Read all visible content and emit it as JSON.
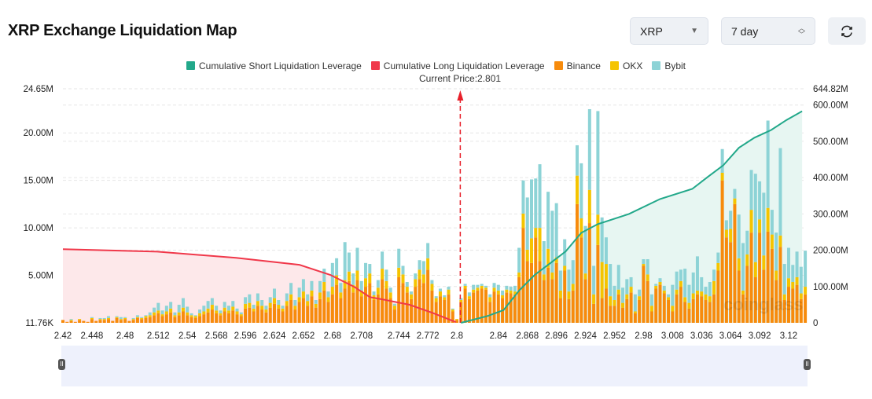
{
  "header": {
    "title": "XRP Exchange Liquidation Map",
    "symbol": "XRP",
    "range": "7 day",
    "refresh_icon": "refresh-icon"
  },
  "colors": {
    "short": "#22a88a",
    "long": "#f0384a",
    "binance": "#f78b0c",
    "okx": "#f5c400",
    "bybit": "#8dd3d6",
    "short_fill": "#e7f6f2",
    "long_fill": "#fde8ea"
  },
  "watermark": "coinglass",
  "chart_data": {
    "type": "bar",
    "legend": [
      "Cumulative Short Liquidation Leverage",
      "Cumulative Long Liquidation Leverage",
      "Binance",
      "OKX",
      "Bybit"
    ],
    "legend_placement": "top-center",
    "current_price_label": "Current Price:2.801",
    "current_price": 2.801,
    "x_tick_labels": [
      "2.42",
      "2.448",
      "2.48",
      "2.512",
      "2.54",
      "2.568",
      "2.596",
      "2.624",
      "2.652",
      "2.68",
      "2.708",
      "2.744",
      "2.772",
      "2.8",
      "2.84",
      "2.868",
      "2.896",
      "2.924",
      "2.952",
      "2.98",
      "3.008",
      "3.036",
      "3.064",
      "3.092",
      "3.12"
    ],
    "y_left": {
      "ylim": [
        0,
        24.65
      ],
      "unit": "M",
      "tick_labels": [
        "24.65M",
        "20.00M",
        "15.00M",
        "10.00M",
        "5.00M",
        "11.76K"
      ],
      "tick_values": [
        24.65,
        20,
        15,
        10,
        5,
        0
      ]
    },
    "y_right": {
      "ylim": [
        0,
        644.82
      ],
      "unit": "M",
      "tick_labels": [
        "644.82M",
        "600.00M",
        "500.00M",
        "400.00M",
        "300.00M",
        "200.00M",
        "100.00M",
        "0"
      ],
      "tick_values": [
        644.82,
        600,
        500,
        400,
        300,
        200,
        100,
        0
      ]
    },
    "grid": true,
    "bars": {
      "x_start": 2.42,
      "x_step": 0.004,
      "binance": [
        0.3,
        0.1,
        0.2,
        0.1,
        0.3,
        0.2,
        0.1,
        0.4,
        0.2,
        0.3,
        0.3,
        0.4,
        0.2,
        0.5,
        0.3,
        0.4,
        0.2,
        0.3,
        0.5,
        0.4,
        0.5,
        0.6,
        0.8,
        1.0,
        0.7,
        0.9,
        1.1,
        0.6,
        0.8,
        1.2,
        0.8,
        0.6,
        0.5,
        0.7,
        0.9,
        1.1,
        1.4,
        1.0,
        0.8,
        1.2,
        1.0,
        1.3,
        0.9,
        0.7,
        1.5,
        1.6,
        1.2,
        1.8,
        1.4,
        1.1,
        1.6,
        2.0,
        1.5,
        1.2,
        1.8,
        2.4,
        1.4,
        2.2,
        2.6,
        1.8,
        2.8,
        1.6,
        2.5,
        3.4,
        2.2,
        3.0,
        4.0,
        2.6,
        3.6,
        4.4,
        3.2,
        4.5,
        2.8,
        3.8,
        4.2,
        2.4,
        3.0,
        4.6,
        3.6,
        2.6,
        1.4,
        4.8,
        4.2,
        3.2,
        2.5,
        3.8,
        4.6,
        4.2,
        5.6,
        3.4,
        2.2,
        2.8,
        2.4,
        3.0,
        1.2,
        0.3,
        2.2,
        3.6,
        2.5,
        3.2,
        3.4,
        3.6,
        3.5,
        2.2,
        3.3,
        3.0,
        2.6,
        3.2,
        3.1,
        3.0,
        4.8,
        10.0,
        6.5,
        6.3,
        9.0,
        6.5,
        4.5,
        5.8,
        4.6,
        6.3,
        2.6,
        5.5,
        2.5,
        3.4,
        12.5,
        9.0,
        4.6,
        10.5,
        2.0,
        8.2,
        2.6,
        3.6,
        1.8,
        1.8,
        3.0,
        1.6,
        2.5,
        3.2,
        1.0,
        2.4,
        6.0,
        4.4,
        1.2,
        3.6,
        4.0,
        3.1,
        2.4,
        1.2,
        3.0,
        3.8,
        2.2,
        1.5,
        2.5,
        3.0,
        2.8,
        2.4,
        2.2,
        3.0,
        5.5,
        15.0,
        9.0,
        8.5,
        12.5,
        5.5,
        3.0,
        6.0,
        9.5,
        4.8,
        9.5,
        5.6,
        9.6,
        7.8,
        4.5,
        8.0,
        2.4,
        3.8,
        3.6,
        4.0,
        2.5,
        3.0
      ],
      "okx": [
        0,
        0,
        0.1,
        0,
        0.1,
        0,
        0,
        0.1,
        0,
        0.1,
        0.1,
        0.1,
        0,
        0.1,
        0.1,
        0.1,
        0,
        0.1,
        0.1,
        0.1,
        0.2,
        0.2,
        0.3,
        0.3,
        0.2,
        0.3,
        0.4,
        0.2,
        0.3,
        0.4,
        0.3,
        0.2,
        0.2,
        0.3,
        0.3,
        0.4,
        0.5,
        0.3,
        0.2,
        0.4,
        0.3,
        0.4,
        0.3,
        0.2,
        0.5,
        0.5,
        0.3,
        0.5,
        0.4,
        0.3,
        0.5,
        0.6,
        0.4,
        0.3,
        0.5,
        0.6,
        0.4,
        0.5,
        0.7,
        0.5,
        0.6,
        0.4,
        0.7,
        0.9,
        0.5,
        0.8,
        1.0,
        0.6,
        0.9,
        1.0,
        0.8,
        1.0,
        0.6,
        0.9,
        1.0,
        0.5,
        0.7,
        1.1,
        0.8,
        0.6,
        0.4,
        1.0,
        0.9,
        0.6,
        0.5,
        0.8,
        1.0,
        0.9,
        1.2,
        0.7,
        0.4,
        0.5,
        0.3,
        0.5,
        0.2,
        0.1,
        0.2,
        0.3,
        0.3,
        0.3,
        0.3,
        0.3,
        0.2,
        0.5,
        0.4,
        0.4,
        0.3,
        0.3,
        0.3,
        0.3,
        0.5,
        1.5,
        1.2,
        2.6,
        1.0,
        3.5,
        0.6,
        2.0,
        0.7,
        0.6,
        0.8,
        0.5,
        0.8,
        0.7,
        3.0,
        2.0,
        0.6,
        3.5,
        1.0,
        3.2,
        3.8,
        2.6,
        1.0,
        0.6,
        0.5,
        0.5,
        0.5,
        0.6,
        0.2,
        0.4,
        0.2,
        0.7,
        0.6,
        0.3,
        0.3,
        0.3,
        0.3,
        0.6,
        0.5,
        0.6,
        0.5,
        0.6,
        0.6,
        0.4,
        0.5,
        0.6,
        0.6,
        1.4,
        0.8,
        0.8,
        0.8,
        1.4,
        0.6,
        1.3,
        0.4,
        1.2,
        2.4,
        1.6,
        1.4,
        1.5,
        2.5,
        1.5,
        1.0,
        1.2,
        0.6,
        0.9,
        0.7,
        0.8,
        0.6,
        0.8
      ],
      "bybit": [
        0,
        0,
        0.1,
        0,
        0,
        0,
        0,
        0.1,
        0,
        0.1,
        0.1,
        0.2,
        0,
        0.1,
        0.2,
        0.1,
        0,
        0.1,
        0.2,
        0.1,
        0.1,
        0.3,
        0.5,
        0.8,
        0.4,
        0.6,
        0.7,
        0.3,
        0.8,
        1.0,
        0.6,
        0.2,
        0.1,
        0.4,
        0.6,
        0.8,
        0.7,
        0.5,
        0.3,
        0.6,
        0.5,
        0.6,
        0.3,
        0.2,
        0.7,
        0.9,
        0.4,
        0.8,
        0.6,
        0.4,
        0.6,
        1.0,
        0.5,
        0.3,
        0.8,
        1.2,
        0.6,
        1.0,
        1.3,
        0.7,
        1.0,
        0.4,
        1.2,
        1.4,
        0.6,
        2.5,
        1.8,
        1.0,
        4.0,
        2.0,
        1.2,
        2.4,
        1.0,
        1.6,
        1.0,
        0.4,
        0.8,
        1.8,
        1.2,
        0.5,
        0.2,
        2.0,
        0.9,
        0.5,
        0.3,
        0.6,
        1.0,
        1.4,
        1.6,
        0.4,
        0.2,
        0.3,
        0.2,
        0.3,
        0.1,
        0,
        0.2,
        0.2,
        0.4,
        0.5,
        0.3,
        0.2,
        0.2,
        0.3,
        0.5,
        0.6,
        0.5,
        0.4,
        0.4,
        0.6,
        2.6,
        3.5,
        5.5,
        6.2,
        5.2,
        6.7,
        3.5,
        6.0,
        6.5,
        5.7,
        2.1,
        2.8,
        2.3,
        2.5,
        3.2,
        5.8,
        5.0,
        8.5,
        3.0,
        10.9,
        4.7,
        2.8,
        3.4,
        1.5,
        2.6,
        1.6,
        1.6,
        1.0,
        1.8,
        0.7,
        0.5,
        1.6,
        1.2,
        0.2,
        0.4,
        0.5,
        0.3,
        2.2,
        1.9,
        1.2,
        3.0,
        1.9,
        2.2,
        3.6,
        1.5,
        0.8,
        1.5,
        1.2,
        1.1,
        2.5,
        1.0,
        1.9,
        1.0,
        4.6,
        5.0,
        2.5,
        4.2,
        9.3,
        4.0,
        6.6,
        9.2,
        2.6,
        4.0,
        9.2,
        3.2,
        3.2,
        1.8,
        2.7,
        2.8,
        3.8
      ]
    },
    "cumulative_long": [
      [
        2.42,
        203
      ],
      [
        2.511,
        196
      ],
      [
        2.587,
        179
      ],
      [
        2.648,
        160
      ],
      [
        2.678,
        132
      ],
      [
        2.701,
        99
      ],
      [
        2.716,
        71
      ],
      [
        2.731,
        63
      ],
      [
        2.754,
        50
      ],
      [
        2.776,
        28
      ],
      [
        2.799,
        2
      ]
    ],
    "cumulative_short": [
      [
        2.804,
        0
      ],
      [
        2.83,
        19
      ],
      [
        2.845,
        35
      ],
      [
        2.86,
        89
      ],
      [
        2.875,
        132
      ],
      [
        2.89,
        164
      ],
      [
        2.905,
        197
      ],
      [
        2.92,
        248
      ],
      [
        2.936,
        272
      ],
      [
        2.966,
        300
      ],
      [
        2.996,
        341
      ],
      [
        3.027,
        369
      ],
      [
        3.042,
        402
      ],
      [
        3.057,
        434
      ],
      [
        3.072,
        482
      ],
      [
        3.087,
        510
      ],
      [
        3.103,
        531
      ],
      [
        3.118,
        559
      ],
      [
        3.133,
        583
      ]
    ]
  }
}
